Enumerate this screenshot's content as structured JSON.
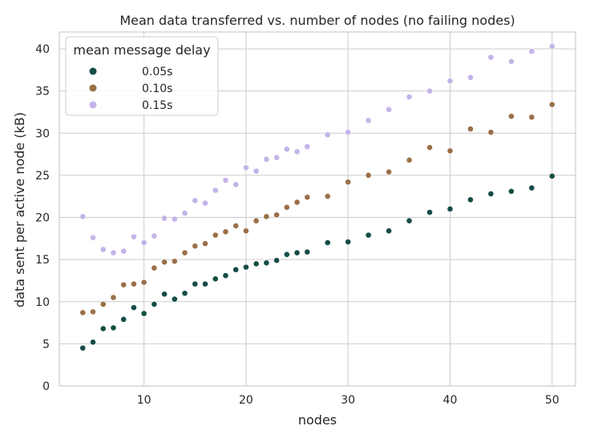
{
  "chart_data": {
    "type": "scatter",
    "title": "Mean data transferred vs. number of nodes (no failing nodes)",
    "xlabel": "nodes",
    "ylabel": "data sent per active node (kB)",
    "xlim": [
      1.7,
      52.3
    ],
    "ylim": [
      0,
      42
    ],
    "xticks": [
      10,
      20,
      30,
      40,
      50
    ],
    "yticks": [
      0,
      5,
      10,
      15,
      20,
      25,
      30,
      35,
      40
    ],
    "grid": true,
    "legend": {
      "title": "mean message delay",
      "position": "top-left"
    },
    "series": [
      {
        "name": "0.05s",
        "color": "#144d47",
        "x": [
          4,
          5,
          6,
          7,
          8,
          9,
          10,
          11,
          12,
          13,
          14,
          15,
          16,
          17,
          18,
          19,
          20,
          21,
          22,
          23,
          24,
          25,
          26,
          28,
          30,
          32,
          34,
          36,
          38,
          40,
          42,
          44,
          46,
          48,
          50
        ],
        "y": [
          4.5,
          5.2,
          6.8,
          6.9,
          7.9,
          9.3,
          8.6,
          9.7,
          10.9,
          10.3,
          11.0,
          12.1,
          12.1,
          12.7,
          13.1,
          13.8,
          14.1,
          14.5,
          14.6,
          14.9,
          15.6,
          15.8,
          15.9,
          17.0,
          17.1,
          17.9,
          18.4,
          19.6,
          20.6,
          21.0,
          22.1,
          22.8,
          23.1,
          23.5,
          24.9
        ]
      },
      {
        "name": "0.10s",
        "color": "#9a7048",
        "x": [
          4,
          5,
          6,
          7,
          8,
          9,
          10,
          11,
          12,
          13,
          14,
          15,
          16,
          17,
          18,
          19,
          20,
          21,
          22,
          23,
          24,
          25,
          26,
          28,
          30,
          32,
          34,
          36,
          38,
          40,
          42,
          44,
          46,
          48,
          50
        ],
        "y": [
          8.7,
          8.8,
          9.7,
          10.5,
          12.0,
          12.1,
          12.3,
          14.0,
          14.7,
          14.8,
          15.8,
          16.6,
          16.9,
          17.9,
          18.3,
          19.0,
          18.4,
          19.6,
          20.1,
          20.3,
          21.2,
          21.8,
          22.4,
          22.5,
          24.2,
          25.0,
          25.4,
          26.8,
          28.3,
          27.9,
          30.5,
          30.1,
          32.0,
          31.9,
          33.4
        ]
      },
      {
        "name": "0.15s",
        "color": "#c4b3e8",
        "x": [
          4,
          5,
          6,
          7,
          8,
          9,
          10,
          11,
          12,
          13,
          14,
          15,
          16,
          17,
          18,
          19,
          20,
          21,
          22,
          23,
          24,
          25,
          26,
          28,
          30,
          32,
          34,
          36,
          38,
          40,
          42,
          44,
          46,
          48,
          50
        ],
        "y": [
          20.1,
          17.6,
          16.2,
          15.8,
          16.0,
          17.7,
          17.0,
          17.8,
          19.9,
          19.8,
          20.5,
          22.0,
          21.7,
          23.2,
          24.4,
          23.9,
          25.9,
          25.5,
          26.9,
          27.1,
          28.1,
          27.8,
          28.4,
          29.8,
          30.1,
          31.5,
          32.8,
          34.3,
          35.0,
          36.2,
          36.6,
          39.0,
          38.5,
          39.7,
          40.3
        ]
      }
    ]
  }
}
